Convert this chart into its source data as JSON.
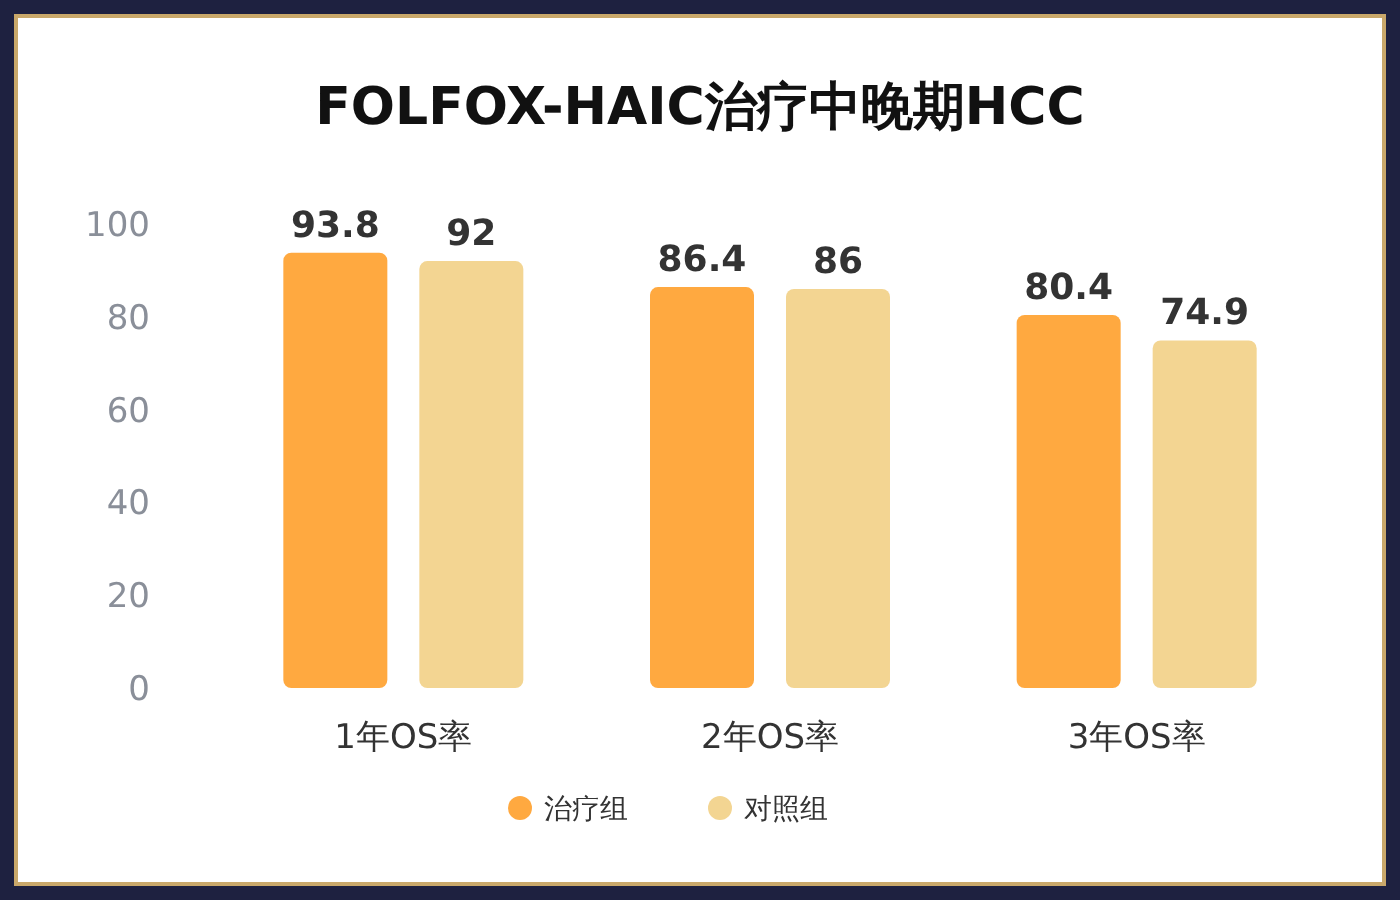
{
  "chart_data": {
    "type": "bar",
    "title": "FOLFOX-HAIC治疗中晚期HCC",
    "categories": [
      "1年OS率",
      "2年OS率",
      "3年OS率"
    ],
    "series": [
      {
        "name": "治疗组",
        "color": "#ffa940",
        "values": [
          93.8,
          86.4,
          80.4
        ]
      },
      {
        "name": "对照组",
        "color": "#f3d592",
        "values": [
          92,
          86,
          74.9
        ]
      }
    ],
    "ylim": [
      0,
      100
    ],
    "yticks": [
      0,
      20,
      40,
      60,
      80,
      100
    ],
    "grid": false,
    "legend": "bottom",
    "data_labels": true
  }
}
